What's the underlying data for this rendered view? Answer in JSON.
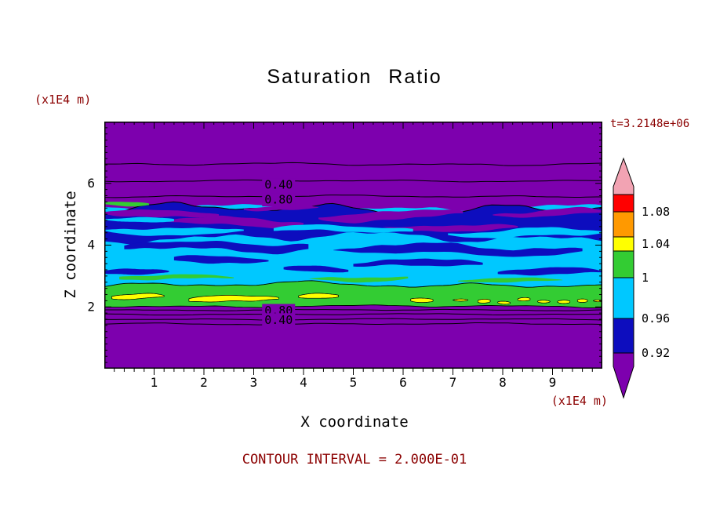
{
  "chart_data": {
    "type": "contour",
    "title": "Saturation Ratio",
    "xlabel": "X coordinate",
    "ylabel": "Z coordinate",
    "x_unit_label": "(x1E4 m)",
    "z_unit_label": "(x1E4 m)",
    "time_annotation": "t=3.2148e+06",
    "footer_annotation": "CONTOUR INTERVAL = 2.000E-01",
    "contour_interval": 0.2,
    "x_range": [
      0,
      10
    ],
    "z_range": [
      0,
      8
    ],
    "x_major_ticks": [
      1,
      2,
      3,
      4,
      5,
      6,
      7,
      8,
      9
    ],
    "z_major_ticks": [
      2,
      4,
      6
    ],
    "minor_tick_step": 0.2,
    "palette": {
      "purple": "#7D00AE",
      "blue": "#0D0DBE",
      "cyan": "#00C8FF",
      "green": "#33CC33",
      "yellow": "#FFFF00",
      "orange": "#FF9900",
      "red": "#FF0000",
      "pink": "#F2A3B3"
    },
    "colorbar": {
      "tick_labels": [
        "1.08",
        "1.04",
        "1",
        "0.96",
        "0.92"
      ],
      "segments_top_to_bottom": [
        "pink",
        "red",
        "orange",
        "yellow",
        "green",
        "cyan",
        "blue",
        "purple"
      ]
    },
    "layers": [
      {
        "name": "cyan-band",
        "color": "cyan",
        "z_top": 5.2,
        "z_bottom": 2.4,
        "amp_top": 0.18,
        "amp_bottom": 0.12,
        "stroke": false
      },
      {
        "name": "blue-band",
        "color": "blue",
        "z_top": 5.18,
        "z_bottom": 4.25,
        "amp_top": 0.26,
        "amp_bottom": 0.25,
        "stroke": "top"
      },
      {
        "name": "green-band",
        "color": "green",
        "z_top": 2.72,
        "z_bottom": 2.02,
        "amp_top": 0.14,
        "amp_bottom": 0.06,
        "stroke": true
      }
    ],
    "streaks": [
      [
        "purple",
        0.0,
        2.3,
        5.02,
        0.22
      ],
      [
        "purple",
        1.2,
        4.0,
        4.72,
        0.26
      ],
      [
        "purple",
        4.3,
        7.2,
        4.95,
        0.28
      ],
      [
        "purple",
        5.6,
        8.3,
        4.55,
        0.2
      ],
      [
        "purple",
        7.8,
        10.0,
        5.05,
        0.22
      ],
      [
        "purple",
        2.8,
        4.3,
        5.2,
        0.18
      ],
      [
        "cyan",
        0.0,
        2.8,
        4.45,
        0.2
      ],
      [
        "cyan",
        3.4,
        6.2,
        4.5,
        0.18
      ],
      [
        "cyan",
        6.9,
        10.0,
        4.4,
        0.22
      ],
      [
        "cyan",
        0.0,
        1.4,
        4.78,
        0.14
      ],
      [
        "blue",
        0.4,
        4.1,
        3.98,
        0.28
      ],
      [
        "blue",
        4.6,
        9.6,
        3.85,
        0.26
      ],
      [
        "blue",
        1.4,
        3.3,
        3.5,
        0.2
      ],
      [
        "blue",
        5.0,
        7.6,
        3.42,
        0.22
      ],
      [
        "blue",
        0.0,
        1.3,
        3.12,
        0.18
      ],
      [
        "blue",
        7.9,
        10.0,
        3.15,
        0.18
      ],
      [
        "blue",
        3.6,
        4.9,
        3.2,
        0.15
      ],
      [
        "green",
        0.3,
        2.6,
        2.95,
        0.16
      ],
      [
        "green",
        4.1,
        6.1,
        2.9,
        0.15
      ],
      [
        "green",
        7.1,
        9.2,
        2.87,
        0.13
      ],
      [
        "green",
        0.0,
        0.9,
        5.32,
        0.12
      ],
      [
        "yellow",
        0.15,
        1.2,
        2.3,
        0.16
      ],
      [
        "yellow",
        1.7,
        3.5,
        2.26,
        0.18
      ],
      [
        "yellow",
        3.9,
        4.7,
        2.3,
        0.14
      ],
      [
        "yellow",
        6.15,
        6.6,
        2.22,
        0.12
      ],
      [
        "yellow",
        7.0,
        7.3,
        2.18,
        0.1
      ],
      [
        "yellow",
        7.5,
        7.75,
        2.2,
        0.1
      ],
      [
        "yellow",
        7.9,
        8.15,
        2.17,
        0.1
      ],
      [
        "yellow",
        8.3,
        8.55,
        2.2,
        0.1
      ],
      [
        "yellow",
        8.7,
        8.95,
        2.18,
        0.1
      ],
      [
        "yellow",
        9.1,
        9.35,
        2.2,
        0.1
      ],
      [
        "yellow",
        9.5,
        9.7,
        2.17,
        0.09
      ],
      [
        "yellow",
        9.82,
        10.0,
        2.19,
        0.09
      ]
    ],
    "contour_lines": [
      {
        "z": 6.62,
        "amp": 0.06
      },
      {
        "z": 6.08,
        "amp": 0.04
      },
      {
        "z": 5.58,
        "amp": 0.05
      },
      {
        "z": 1.9,
        "amp": 0.03
      },
      {
        "z": 1.76,
        "amp": 0.03
      },
      {
        "z": 1.6,
        "amp": 0.03
      },
      {
        "z": 1.45,
        "amp": 0.04
      }
    ],
    "contour_labels": [
      {
        "text": "0.40",
        "x": 3.5,
        "z": 5.95
      },
      {
        "text": "0.80",
        "x": 3.5,
        "z": 5.47
      },
      {
        "text": "0.80",
        "x": 3.5,
        "z": 1.88
      },
      {
        "text": "0.40",
        "x": 3.5,
        "z": 1.58
      }
    ]
  }
}
